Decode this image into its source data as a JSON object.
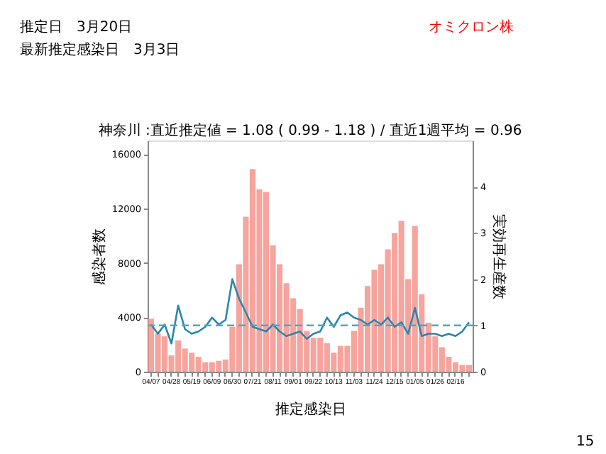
{
  "chart_data": {
    "type": "bar",
    "title": "神奈川 :直近推定値 = 1.08 ( 0.99 - 1.18 ) / 直近1週平均 = 0.96",
    "xlabel": "推定感染日",
    "ylabel": "感染者数",
    "y2label": "実効再生産数",
    "annotations": [
      "推定日　3月20日",
      "最新推定感染日　3月3日",
      "オミクロン株",
      "15"
    ],
    "categories": [
      "04/07",
      null,
      null,
      "04/28",
      null,
      null,
      "05/19",
      null,
      null,
      "06/09",
      null,
      null,
      "06/30",
      null,
      null,
      "07/21",
      null,
      null,
      "08/11",
      null,
      null,
      "09/01",
      null,
      null,
      "09/22",
      null,
      null,
      "10/13",
      null,
      null,
      "11/03",
      null,
      null,
      "11/24",
      null,
      null,
      "12/15",
      null,
      null,
      "01/05",
      null,
      null,
      "01/26",
      null,
      null,
      "02/16",
      null,
      null
    ],
    "series": [
      {
        "color": "#f4948c",
        "values": [
          3900,
          2800,
          2600,
          1200,
          2300,
          1700,
          1400,
          1100,
          700,
          700,
          800,
          900,
          3300,
          7900,
          11400,
          14900,
          13400,
          13200,
          9300,
          7900,
          6500,
          5400,
          4600,
          3000,
          2500,
          2500,
          2100,
          1400,
          1900,
          1900,
          3000,
          4700,
          6300,
          7500,
          7900,
          9000,
          10200,
          11100,
          6800,
          10700,
          5700,
          3600,
          2600,
          1800,
          1100,
          700,
          500,
          500
        ]
      },
      {
        "type": "line",
        "axis": "y2",
        "color": "#2a86ad",
        "values": [
          1.02,
          0.82,
          1.02,
          0.61,
          1.43,
          0.92,
          0.82,
          0.87,
          0.97,
          1.17,
          1.02,
          1.12,
          2.0,
          1.58,
          1.28,
          0.97,
          0.92,
          0.87,
          1.02,
          0.87,
          0.77,
          0.82,
          0.87,
          0.71,
          0.82,
          0.87,
          1.17,
          0.97,
          1.22,
          1.28,
          1.17,
          1.12,
          1.02,
          1.12,
          1.02,
          1.17,
          0.97,
          1.07,
          0.82,
          1.38,
          0.77,
          0.82,
          0.82,
          0.77,
          0.82,
          0.77,
          0.87,
          1.07
        ]
      }
    ],
    "ylim": [
      0,
      17000
    ],
    "yticks": [
      0,
      4000,
      8000,
      12000,
      16000
    ],
    "y2lim": [
      0,
      5
    ],
    "y2ticks": [
      0,
      1,
      2,
      3,
      4
    ],
    "ref_lines": [
      {
        "axis": "y2",
        "value": 1,
        "color": "#4aa8c8",
        "line_style": "dashed"
      }
    ],
    "grid": false,
    "line_style": "solid",
    "marker": "none"
  }
}
